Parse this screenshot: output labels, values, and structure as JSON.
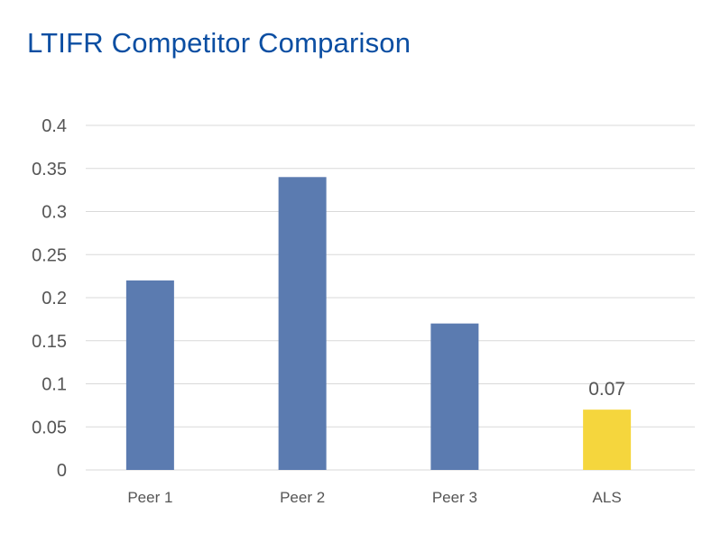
{
  "chart_data": {
    "type": "bar",
    "title": "LTIFR Competitor Comparison",
    "xlabel": "",
    "ylabel": "",
    "categories": [
      "Peer 1",
      "Peer 2",
      "Peer 3",
      "ALS"
    ],
    "values": [
      0.22,
      0.34,
      0.17,
      0.07
    ],
    "ylim": [
      0,
      0.4
    ],
    "yticks": [
      "0",
      "0.05",
      "0.1",
      "0.15",
      "0.2",
      "0.25",
      "0.3",
      "0.35",
      "0.4"
    ],
    "data_labels": [
      null,
      null,
      null,
      "0.07"
    ],
    "grid": true,
    "legend": "none",
    "colors": {
      "title": "#0b4ea2",
      "bar": "#5b7bb0",
      "highlight": "#f5d63d",
      "grid": "#d9d9d9",
      "text": "#555555"
    }
  }
}
